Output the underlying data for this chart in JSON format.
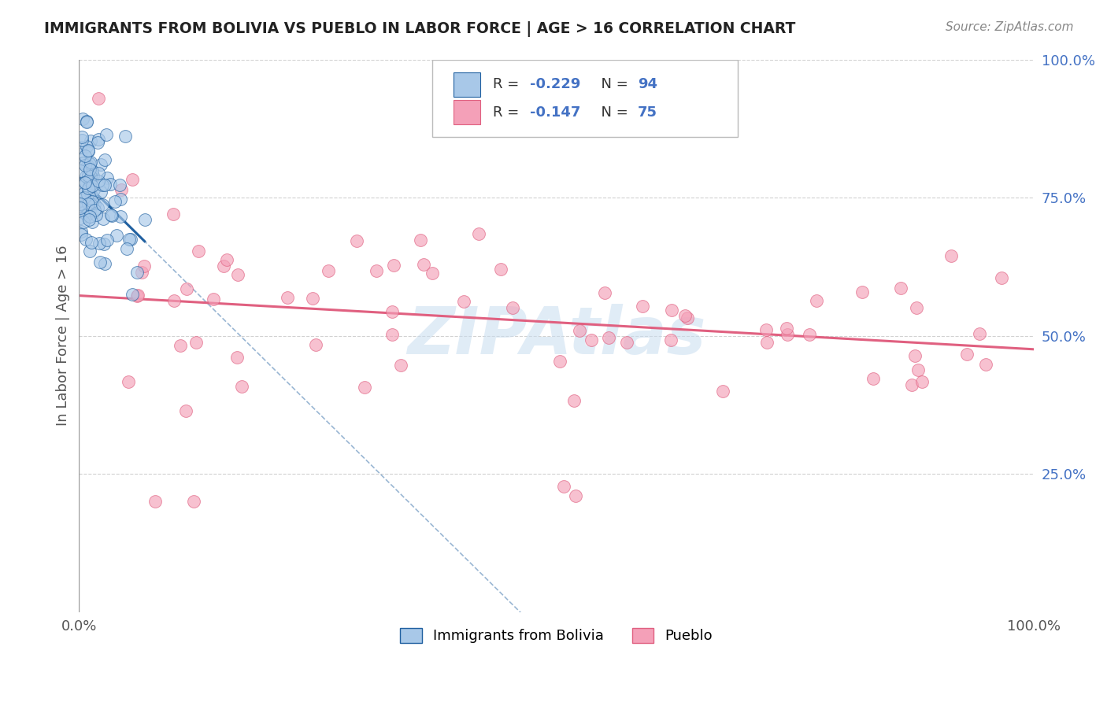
{
  "title": "IMMIGRANTS FROM BOLIVIA VS PUEBLO IN LABOR FORCE | AGE > 16 CORRELATION CHART",
  "source_text": "Source: ZipAtlas.com",
  "ylabel": "In Labor Force | Age > 16",
  "legend_labels": [
    "Immigrants from Bolivia",
    "Pueblo"
  ],
  "blue_R": -0.229,
  "blue_N": 94,
  "pink_R": -0.147,
  "pink_N": 75,
  "blue_color": "#a8c8e8",
  "pink_color": "#f4a0b8",
  "blue_line_color": "#2060a0",
  "pink_line_color": "#e06080",
  "dashed_line_color": "#88aacc",
  "background_color": "#ffffff",
  "grid_color": "#cccccc",
  "title_color": "#222222",
  "right_label_color": "#4472c4",
  "watermark": "ZIPAtlas",
  "watermark_color": "#c8ddf0",
  "legend_box_edge": "#bbbbbb"
}
